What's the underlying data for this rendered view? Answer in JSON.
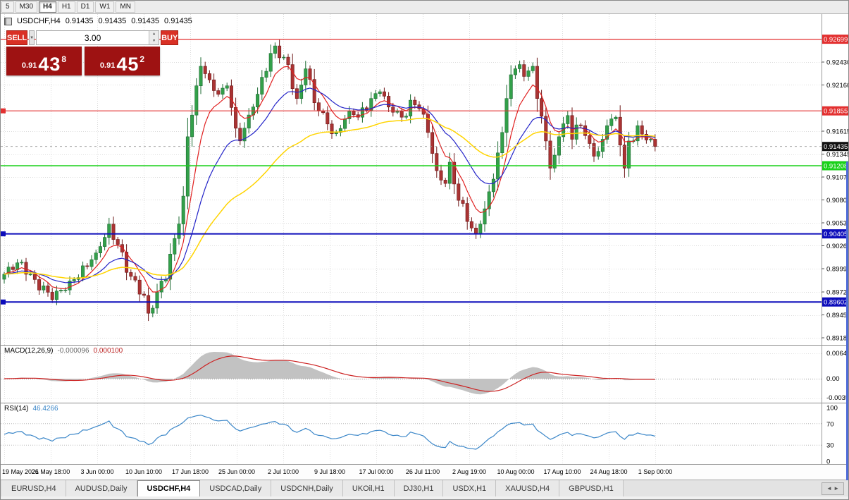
{
  "toolbar": {
    "timeframes": [
      {
        "label": "5",
        "active": false
      },
      {
        "label": "M30",
        "active": false
      },
      {
        "label": "H4",
        "active": true
      },
      {
        "label": "H1",
        "active": false
      },
      {
        "label": "D1",
        "active": false
      },
      {
        "label": "W1",
        "active": false
      },
      {
        "label": "MN",
        "active": false
      }
    ]
  },
  "chart": {
    "symbol": "USDCHF,H4",
    "open": "0.91435",
    "high": "0.91435",
    "low": "0.91435",
    "close": "0.91435"
  },
  "trade_panel": {
    "sell_label": "SELL",
    "buy_label": "BUY",
    "lot_value": "3.00",
    "sell_price": {
      "prefix": "0.91",
      "big": "43",
      "sup": "8"
    },
    "buy_price": {
      "prefix": "0.91",
      "big": "45",
      "sup": "2"
    },
    "panel_color": "#9e1212",
    "button_color": "#d93025"
  },
  "price_axis": {
    "labels": [
      "0.92430",
      "0.92160",
      "0.91615",
      "0.91345",
      "0.91075",
      "0.90805",
      "0.90535",
      "0.90265",
      "0.89995",
      "0.89720",
      "0.89450",
      "0.89180"
    ]
  },
  "hlines": [
    {
      "label": "0.92699",
      "value": 0.92699,
      "color": "#e33030",
      "width": 1.2,
      "marker": false
    },
    {
      "label": "0.91855",
      "value": 0.91855,
      "color": "#e33030",
      "width": 1.2,
      "marker": true
    },
    {
      "label": "0.91208",
      "value": 0.91208,
      "color": "#19d119",
      "width": 1.6,
      "marker": false
    },
    {
      "label": "0.90405",
      "value": 0.90405,
      "color": "#0d0dbb",
      "width": 2,
      "marker": true
    },
    {
      "label": "0.89602",
      "value": 0.89602,
      "color": "#0d0dbb",
      "width": 2,
      "marker": true
    }
  ],
  "current_price": {
    "label": "0.91435",
    "value": 0.91435,
    "box_color": "#111111"
  },
  "time_axis": {
    "labels": [
      "19 May 2021",
      "26 May 18:00",
      "3 Jun 00:00",
      "10 Jun 10:00",
      "17 Jun 18:00",
      "25 Jun 00:00",
      "2 Jul 10:00",
      "9 Jul 18:00",
      "17 Jul 00:00",
      "26 Jul 11:00",
      "2 Aug 19:00",
      "10 Aug 00:00",
      "17 Aug 10:00",
      "24 Aug 18:00",
      "1 Sep 00:00"
    ]
  },
  "macd": {
    "label": "MACD(12,26,9)",
    "value_main": "-0.000096",
    "value_signal": "0.000100",
    "axis_labels": [
      "0.00645",
      "0.00",
      "-0.00350"
    ],
    "hist_color": "#c2c2c2",
    "line_color": "#cc2222"
  },
  "rsi": {
    "label": "RSI(14)",
    "value": "46.4266",
    "axis_labels": [
      "100",
      "70",
      "30",
      "0"
    ],
    "line_color": "#3a86c8",
    "levels": [
      70,
      30
    ]
  },
  "tabs": [
    {
      "label": "EURUSD,H4",
      "active": false
    },
    {
      "label": "AUDUSD,Daily",
      "active": false
    },
    {
      "label": "USDCHF,H4",
      "active": true
    },
    {
      "label": "USDCAD,Daily",
      "active": false
    },
    {
      "label": "USDCNH,Daily",
      "active": false
    },
    {
      "label": "UKOil,H1",
      "active": false
    },
    {
      "label": "DJ30,H1",
      "active": false
    },
    {
      "label": "USDX,H1",
      "active": false
    },
    {
      "label": "XAUUSD,H4",
      "active": false
    },
    {
      "label": "GBPUSD,H1",
      "active": false
    }
  ],
  "chart_data": {
    "type": "candlestick",
    "title": "USDCHF H4",
    "bars": 150,
    "price_range": {
      "top": 0.92995,
      "bottom": 0.89097
    },
    "y_ticks": [
      0.9243,
      0.9216,
      0.91615,
      0.91345,
      0.91075,
      0.90805,
      0.90535,
      0.90265,
      0.89995,
      0.8972,
      0.8945,
      0.8918
    ],
    "x_labels": [
      "19 May 2021",
      "26 May 18:00",
      "3 Jun 00:00",
      "10 Jun 10:00",
      "17 Jun 18:00",
      "25 Jun 00:00",
      "2 Jul 10:00",
      "9 Jul 18:00",
      "17 Jul 00:00",
      "26 Jul 11:00",
      "2 Aug 19:00",
      "10 Aug 00:00",
      "17 Aug 10:00",
      "24 Aug 18:00",
      "1 Sep 00:00"
    ],
    "close_anchors": [
      [
        0,
        0.8993
      ],
      [
        4,
        0.9007
      ],
      [
        6,
        0.8993
      ],
      [
        11,
        0.8963
      ],
      [
        15,
        0.8985
      ],
      [
        19,
        0.9002
      ],
      [
        21,
        0.9018
      ],
      [
        24,
        0.9052
      ],
      [
        26,
        0.9028
      ],
      [
        28,
        0.8995
      ],
      [
        32,
        0.8968
      ],
      [
        33,
        0.8947
      ],
      [
        35,
        0.8972
      ],
      [
        37,
        0.8987
      ],
      [
        39,
        0.9035
      ],
      [
        41,
        0.9085
      ],
      [
        42,
        0.9155
      ],
      [
        44,
        0.9215
      ],
      [
        45,
        0.9238
      ],
      [
        47,
        0.9222
      ],
      [
        49,
        0.9205
      ],
      [
        51,
        0.9215
      ],
      [
        53,
        0.9165
      ],
      [
        54,
        0.915
      ],
      [
        57,
        0.919
      ],
      [
        59,
        0.9225
      ],
      [
        62,
        0.9262
      ],
      [
        63,
        0.9248
      ],
      [
        65,
        0.924
      ],
      [
        67,
        0.92
      ],
      [
        69,
        0.9235
      ],
      [
        71,
        0.9195
      ],
      [
        74,
        0.917
      ],
      [
        76,
        0.916
      ],
      [
        79,
        0.9185
      ],
      [
        81,
        0.9178
      ],
      [
        84,
        0.92
      ],
      [
        86,
        0.9208
      ],
      [
        88,
        0.919
      ],
      [
        91,
        0.9178
      ],
      [
        93,
        0.9198
      ],
      [
        95,
        0.9188
      ],
      [
        97,
        0.916
      ],
      [
        99,
        0.9115
      ],
      [
        101,
        0.91
      ],
      [
        102,
        0.9125
      ],
      [
        104,
        0.908
      ],
      [
        106,
        0.9055
      ],
      [
        108,
        0.904
      ],
      [
        109,
        0.9052
      ],
      [
        110,
        0.907
      ],
      [
        112,
        0.9105
      ],
      [
        114,
        0.916
      ],
      [
        115,
        0.92
      ],
      [
        116,
        0.9228
      ],
      [
        118,
        0.924
      ],
      [
        119,
        0.9226
      ],
      [
        121,
        0.9238
      ],
      [
        122,
        0.92
      ],
      [
        124,
        0.915
      ],
      [
        125,
        0.9118
      ],
      [
        127,
        0.9155
      ],
      [
        129,
        0.918
      ],
      [
        130,
        0.9152
      ],
      [
        132,
        0.9168
      ],
      [
        134,
        0.9147
      ],
      [
        135,
        0.9132
      ],
      [
        137,
        0.9152
      ],
      [
        138,
        0.9168
      ],
      [
        140,
        0.9178
      ],
      [
        142,
        0.9118
      ],
      [
        143,
        0.915
      ],
      [
        145,
        0.9168
      ],
      [
        146,
        0.9158
      ],
      [
        148,
        0.9152
      ],
      [
        149,
        0.91435
      ]
    ],
    "wiggle": {
      "a1": 0.00055,
      "f1": 2.17,
      "a2": 0.00035,
      "f2": 0.73
    },
    "colors": {
      "up": "#33a04a",
      "up_edge": "#1d6b33",
      "down": "#aa3333",
      "down_edge": "#6e1a1a"
    },
    "moving_averages": [
      {
        "period": 7,
        "color": "#e02020",
        "width": 1.2
      },
      {
        "period": 18,
        "color": "#2424c8",
        "width": 1.2
      },
      {
        "period": 45,
        "color": "#ffd400",
        "width": 1.5
      }
    ],
    "indicators": {
      "macd": {
        "fast": 12,
        "slow": 26,
        "signal": 9
      },
      "rsi": {
        "period": 14
      }
    },
    "hlines": [
      0.92699,
      0.91855,
      0.91208,
      0.90405,
      0.89602
    ],
    "current_price": 0.91435
  }
}
